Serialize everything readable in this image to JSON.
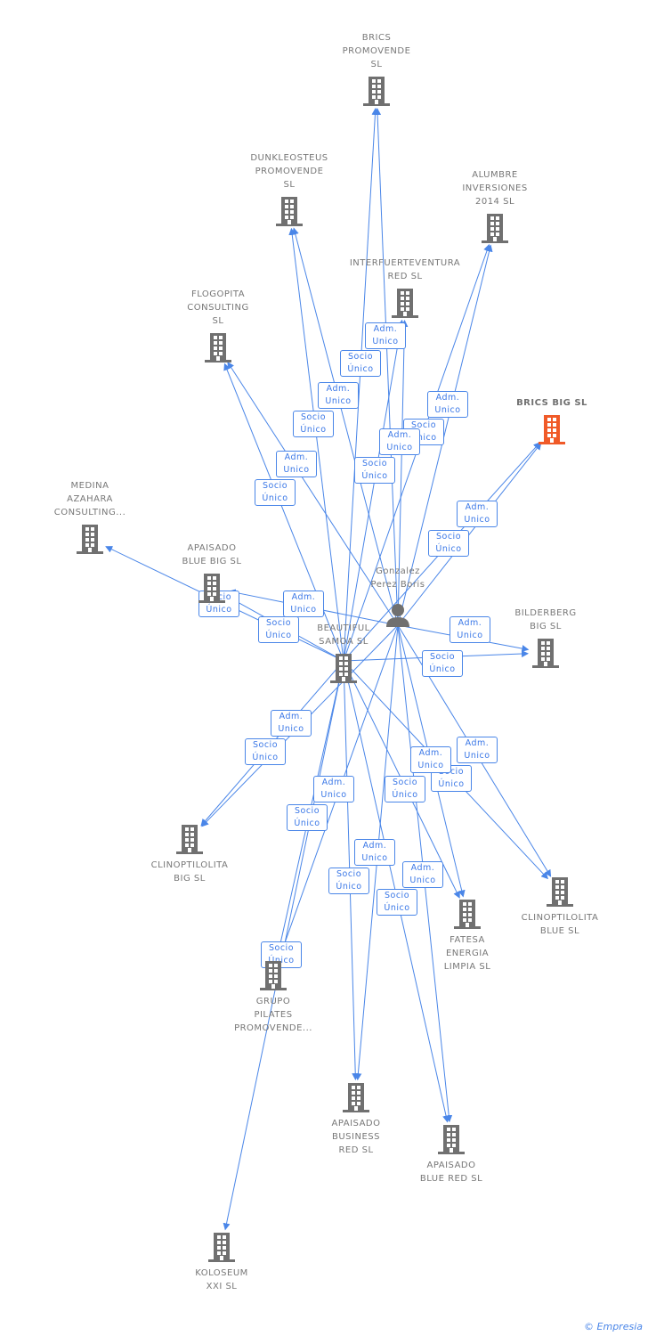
{
  "colors": {
    "edge": "#4a86e8",
    "building": "#707070",
    "highlight": "#f05a28",
    "person": "#707070"
  },
  "person": {
    "name": "Gonzalez Perez Boris",
    "icon": "person-icon"
  },
  "companies": [
    {
      "id": "brics_promovende",
      "label": "BRICS\nPROMOVENDE\nSL"
    },
    {
      "id": "dunkleosteus",
      "label": "DUNKLEOSTEUS\nPROMOVENDE\nSL"
    },
    {
      "id": "alumbre",
      "label": "ALUMBRE\nINVERSIONES\n2014 SL"
    },
    {
      "id": "interfuerteventura",
      "label": "INTERFUERTEVENTURA\nRED SL"
    },
    {
      "id": "flogopita",
      "label": "FLOGOPITA\nCONSULTING\nSL"
    },
    {
      "id": "brics_big",
      "label": "BRICS BIG SL",
      "highlighted": true
    },
    {
      "id": "medina",
      "label": "MEDINA\nAZAHARA\nCONSULTING..."
    },
    {
      "id": "apaisado_blue_big",
      "label": "APAISADO\nBLUE BIG SL"
    },
    {
      "id": "samoa",
      "label": "BEAUTIFUL\nSAMOA SL"
    },
    {
      "id": "bilderberg",
      "label": "BILDERBERG\nBIG SL"
    },
    {
      "id": "clino_big",
      "label": "CLINOPTILOLITA\nBIG SL"
    },
    {
      "id": "clino_blue",
      "label": "CLINOPTILOLITA\nBLUE SL"
    },
    {
      "id": "fatesa",
      "label": "FATESA\nENERGIA\nLIMPIA SL"
    },
    {
      "id": "pilates",
      "label": "GRUPO\nPILATES\nPROMOVENDE..."
    },
    {
      "id": "business_red",
      "label": "APAISADO\nBUSINESS\nRED SL"
    },
    {
      "id": "blue_red",
      "label": "APAISADO\nBLUE RED SL"
    },
    {
      "id": "koloseum",
      "label": "KOLOSEUM\nXXI SL"
    }
  ],
  "roles": {
    "adm": "Adm.\nUnico",
    "socio": "Socio\nÚnico"
  },
  "edges": [
    {
      "from": "person",
      "to": "brics_promovende",
      "role": "adm"
    },
    {
      "from": "samoa",
      "to": "brics_promovende",
      "role": "socio"
    },
    {
      "from": "person",
      "to": "dunkleosteus",
      "role": "adm"
    },
    {
      "from": "samoa",
      "to": "dunkleosteus",
      "role": "socio"
    },
    {
      "from": "person",
      "to": "alumbre",
      "role": "adm"
    },
    {
      "from": "samoa",
      "to": "alumbre",
      "role": "socio"
    },
    {
      "from": "person",
      "to": "interfuerteventura",
      "role": "adm"
    },
    {
      "from": "samoa",
      "to": "interfuerteventura",
      "role": "socio"
    },
    {
      "from": "person",
      "to": "flogopita",
      "role": "adm"
    },
    {
      "from": "samoa",
      "to": "flogopita",
      "role": "socio"
    },
    {
      "from": "person",
      "to": "brics_big",
      "role": "adm"
    },
    {
      "from": "samoa",
      "to": "brics_big",
      "role": "socio"
    },
    {
      "from": "person",
      "to": "apaisado_blue_big",
      "role": "adm"
    },
    {
      "from": "samoa",
      "to": "apaisado_blue_big",
      "role": "socio"
    },
    {
      "from": "samoa",
      "to": "medina",
      "role": "socio"
    },
    {
      "from": "person",
      "to": "bilderberg",
      "role": "adm"
    },
    {
      "from": "samoa",
      "to": "bilderberg",
      "role": "socio"
    },
    {
      "from": "person",
      "to": "clino_big",
      "role": "adm"
    },
    {
      "from": "samoa",
      "to": "clino_big",
      "role": "socio"
    },
    {
      "from": "person",
      "to": "clino_blue",
      "role": "adm"
    },
    {
      "from": "samoa",
      "to": "clino_blue",
      "role": "socio"
    },
    {
      "from": "person",
      "to": "fatesa",
      "role": "adm"
    },
    {
      "from": "samoa",
      "to": "fatesa",
      "role": "socio"
    },
    {
      "from": "person",
      "to": "pilates",
      "role": "adm"
    },
    {
      "from": "samoa",
      "to": "pilates",
      "role": "socio"
    },
    {
      "from": "person",
      "to": "business_red",
      "role": "adm"
    },
    {
      "from": "samoa",
      "to": "business_red",
      "role": "socio"
    },
    {
      "from": "person",
      "to": "blue_red",
      "role": "adm"
    },
    {
      "from": "samoa",
      "to": "blue_red",
      "role": "socio"
    },
    {
      "from": "samoa",
      "to": "koloseum",
      "role": "socio"
    }
  ],
  "footer": {
    "copyright": "©",
    "brand": "Empresia"
  }
}
